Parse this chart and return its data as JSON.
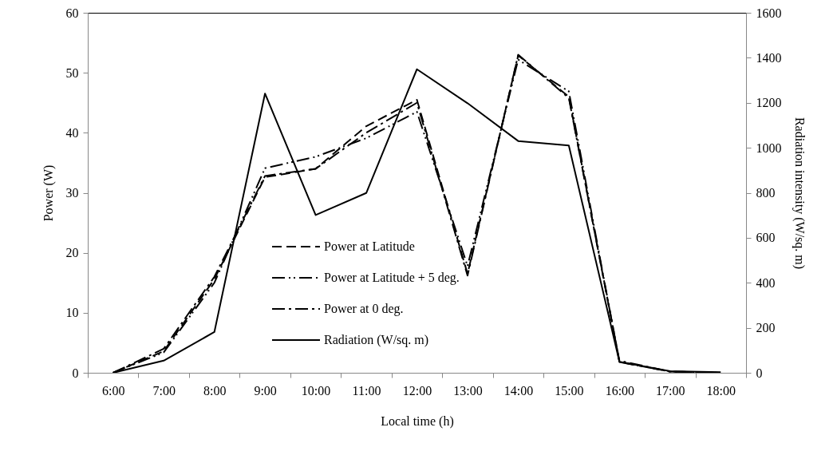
{
  "chart_data": {
    "type": "line",
    "xlabel": "Local time (h)",
    "ylabel": "Power (W)",
    "y2label": "Radiation intensity (W/sq. m)",
    "categories": [
      "6:00",
      "7:00",
      "8:00",
      "9:00",
      "10:00",
      "11:00",
      "12:00",
      "13:00",
      "14:00",
      "15:00",
      "16:00",
      "17:00",
      "18:00"
    ],
    "series": [
      {
        "name": "Power at Latitude",
        "color": "#000000",
        "line_style": "dashed",
        "values": [
          0,
          3.6,
          15.6,
          32.6,
          34.0,
          41.1,
          45.5,
          16.5,
          52.9,
          46.0,
          1.8,
          0.2,
          0
        ]
      },
      {
        "name": "Power at Latitude + 5 deg.",
        "color": "#000000",
        "line_style": "dashdotdot",
        "values": [
          0,
          3.4,
          15.0,
          34.1,
          36.0,
          39.1,
          43.5,
          17.8,
          52.2,
          46.9,
          1.8,
          0.2,
          0
        ]
      },
      {
        "name": "Power at 0 deg.",
        "color": "#000000",
        "line_style": "dashdot",
        "values": [
          0,
          4.0,
          16.0,
          32.8,
          34.0,
          40.0,
          45.0,
          16.2,
          53.0,
          45.8,
          2.0,
          0.2,
          0
        ]
      },
      {
        "name": "Radiation (W/sq. m)",
        "color": "#000000",
        "line_style": "solid",
        "axis": "y2",
        "values": [
          0,
          54,
          181,
          1241,
          701,
          799,
          1349,
          1198,
          1030,
          1010,
          49,
          7,
          3
        ]
      }
    ],
    "ylim": [
      0,
      60
    ],
    "yticks": [
      0,
      10,
      20,
      30,
      40,
      50,
      60
    ],
    "y2lim": [
      0,
      1600
    ],
    "y2ticks": [
      0,
      200,
      400,
      600,
      800,
      1000,
      1200,
      1400,
      1600
    ],
    "grid": false,
    "legend": "bottom"
  }
}
